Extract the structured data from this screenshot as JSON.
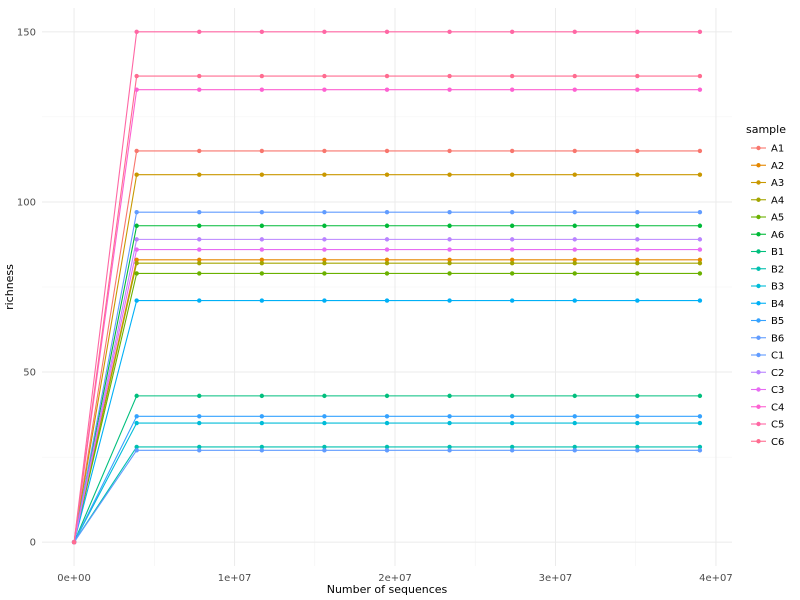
{
  "chart_data": {
    "type": "line",
    "xlabel": "Number of sequences",
    "ylabel": "richness",
    "legend_title": "sample",
    "legend_position": "right",
    "grid": true,
    "xlim": [
      -2000000,
      41000000
    ],
    "ylim": [
      -7,
      157
    ],
    "x_ticks": [
      0,
      10000000,
      20000000,
      30000000,
      40000000
    ],
    "x_tick_labels": [
      "0e+00",
      "1e+07",
      "2e+07",
      "3e+07",
      "4e+07"
    ],
    "y_ticks": [
      0,
      50,
      100,
      150
    ],
    "y_tick_labels": [
      "0",
      "50",
      "100",
      "150"
    ],
    "x": [
      0,
      3900000,
      7800000,
      11700000,
      15600000,
      19500000,
      23400000,
      27300000,
      31200000,
      35100000,
      39000000
    ],
    "series": [
      {
        "name": "A1",
        "color": "#F8766D",
        "plateau": 115
      },
      {
        "name": "A2",
        "color": "#E58700",
        "plateau": 83
      },
      {
        "name": "A3",
        "color": "#C99800",
        "plateau": 108
      },
      {
        "name": "A4",
        "color": "#A3A500",
        "plateau": 82
      },
      {
        "name": "A5",
        "color": "#6BB100",
        "plateau": 79
      },
      {
        "name": "A6",
        "color": "#00BA38",
        "plateau": 93
      },
      {
        "name": "B1",
        "color": "#00BF7D",
        "plateau": 43
      },
      {
        "name": "B2",
        "color": "#00C0AF",
        "plateau": 28
      },
      {
        "name": "B3",
        "color": "#00BCD8",
        "plateau": 35
      },
      {
        "name": "B4",
        "color": "#00B0F6",
        "plateau": 71
      },
      {
        "name": "B5",
        "color": "#35A2FF",
        "plateau": 37
      },
      {
        "name": "B6",
        "color": "#619CFF",
        "plateau": 27
      },
      {
        "name": "C1",
        "color": "#619CFF",
        "plateau": 97
      },
      {
        "name": "C2",
        "color": "#B983FF",
        "plateau": 89
      },
      {
        "name": "C3",
        "color": "#E76BF3",
        "plateau": 86
      },
      {
        "name": "C4",
        "color": "#FD61D1",
        "plateau": 133
      },
      {
        "name": "C5",
        "color": "#FF67A4",
        "plateau": 150
      },
      {
        "name": "C6",
        "color": "#FF6C90",
        "plateau": 137
      }
    ]
  }
}
